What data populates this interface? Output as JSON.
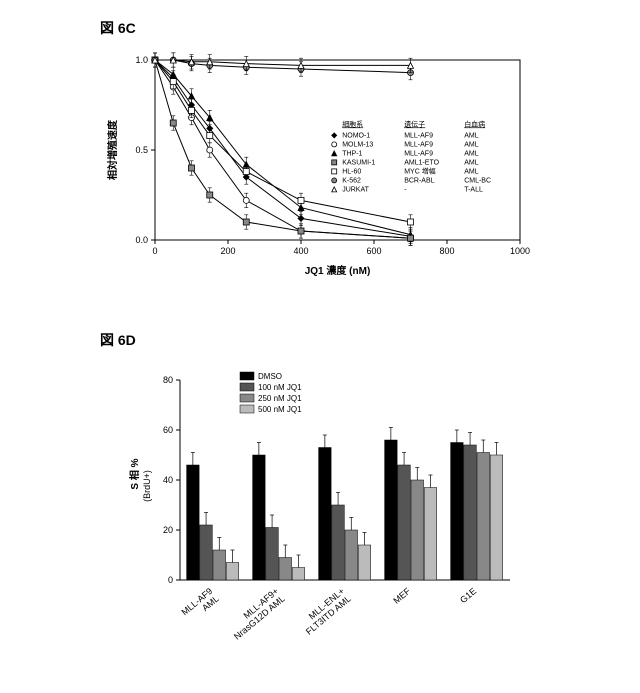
{
  "figC": {
    "label": "図 6C",
    "type": "line",
    "x_label": "JQ1 濃度 (nM)",
    "y_label": "相対増殖速度",
    "xlim": [
      0,
      1000
    ],
    "ylim": [
      0.0,
      1.0
    ],
    "xticks": [
      0,
      200,
      400,
      600,
      800,
      1000
    ],
    "yticks": [
      0.0,
      0.5,
      1.0
    ],
    "xtick_labels": [
      "0",
      "200",
      "400",
      "600",
      "800",
      "1000"
    ],
    "ytick_labels": [
      "0.0",
      "0.5",
      "1.0"
    ],
    "label_fontsize": 10,
    "tick_fontsize": 9,
    "background_color": "#ffffff",
    "axis_color": "#000000",
    "grid": false,
    "legend_headers": [
      "細胞系",
      "遺伝子",
      "白血病"
    ],
    "error_bar": 0.04,
    "series": [
      {
        "name": "NOMO-1",
        "gene": "MLL-AF9",
        "disease": "AML",
        "marker": "diamond",
        "fill": "#000000",
        "stroke": "#000000",
        "x": [
          0,
          50,
          100,
          150,
          250,
          400,
          700
        ],
        "y": [
          1.0,
          0.9,
          0.75,
          0.62,
          0.35,
          0.12,
          0.02
        ]
      },
      {
        "name": "MOLM-13",
        "gene": "MLL-AF9",
        "disease": "AML",
        "marker": "circle",
        "fill": "#ffffff",
        "stroke": "#000000",
        "x": [
          0,
          50,
          100,
          150,
          250,
          400,
          700
        ],
        "y": [
          1.0,
          0.85,
          0.68,
          0.5,
          0.22,
          0.05,
          0.01
        ]
      },
      {
        "name": "THP-1",
        "gene": "MLL-AF9",
        "disease": "AML",
        "marker": "triangle",
        "fill": "#000000",
        "stroke": "#000000",
        "x": [
          0,
          50,
          100,
          150,
          250,
          400,
          700
        ],
        "y": [
          1.0,
          0.92,
          0.8,
          0.68,
          0.42,
          0.18,
          0.03
        ]
      },
      {
        "name": "KASUMI-1",
        "gene": "AML1-ETO",
        "disease": "AML",
        "marker": "square",
        "fill": "#888888",
        "stroke": "#000000",
        "x": [
          0,
          50,
          100,
          150,
          250,
          400,
          700
        ],
        "y": [
          1.0,
          0.65,
          0.4,
          0.25,
          0.1,
          0.05,
          0.01
        ]
      },
      {
        "name": "HL-60",
        "gene": "MYC 増幅",
        "disease": "AML",
        "marker": "square",
        "fill": "#ffffff",
        "stroke": "#000000",
        "x": [
          0,
          50,
          100,
          150,
          250,
          400,
          700
        ],
        "y": [
          1.0,
          0.88,
          0.72,
          0.58,
          0.38,
          0.22,
          0.1
        ]
      },
      {
        "name": "K-562",
        "gene": "BCR-ABL",
        "disease": "CML-BC",
        "marker": "circle",
        "fill": "#888888",
        "stroke": "#000000",
        "x": [
          0,
          50,
          100,
          150,
          250,
          400,
          700
        ],
        "y": [
          1.0,
          1.0,
          0.98,
          0.97,
          0.96,
          0.95,
          0.93
        ]
      },
      {
        "name": "JURKAT",
        "gene": "-",
        "disease": "T-ALL",
        "marker": "triangle",
        "fill": "#ffffff",
        "stroke": "#000000",
        "x": [
          0,
          50,
          100,
          150,
          250,
          400,
          700
        ],
        "y": [
          1.0,
          1.0,
          0.99,
          0.99,
          0.98,
          0.97,
          0.97
        ]
      }
    ]
  },
  "figD": {
    "label": "図 6D",
    "type": "bar",
    "y_label": "S 相 %\n(BrdU+)",
    "ylabel_line1": "S 相 %",
    "ylabel_line2": "(BrdU+)",
    "ylim": [
      0,
      80
    ],
    "yticks": [
      0,
      20,
      40,
      60,
      80
    ],
    "ytick_labels": [
      "0",
      "20",
      "40",
      "60",
      "80"
    ],
    "label_fontsize": 10,
    "tick_fontsize": 9,
    "background_color": "#ffffff",
    "axis_color": "#000000",
    "bar_group_width": 0.8,
    "bar_colors": [
      "#000000",
      "#555555",
      "#888888",
      "#bbbbbb"
    ],
    "conditions": [
      "DMSO",
      "100 nM JQ1",
      "250 nM JQ1",
      "500 nM JQ1"
    ],
    "categories": [
      "MLL-AF9\nAML",
      "MLL-AF9+\nNrasG12D AML",
      "MLL-ENL+\nFLT3ITD AML",
      "MEF",
      "G1E"
    ],
    "categories_line1": [
      "MLL-AF9",
      "MLL-AF9+",
      "MLL-ENL+",
      "MEF",
      "G1E"
    ],
    "categories_line2": [
      "AML",
      "NrasG12D AML",
      "FLT3ITD AML",
      "",
      ""
    ],
    "error_bar": 5,
    "values": [
      [
        46,
        22,
        12,
        7
      ],
      [
        50,
        21,
        9,
        5
      ],
      [
        53,
        30,
        20,
        14
      ],
      [
        56,
        46,
        40,
        37
      ],
      [
        55,
        54,
        51,
        50
      ]
    ]
  }
}
